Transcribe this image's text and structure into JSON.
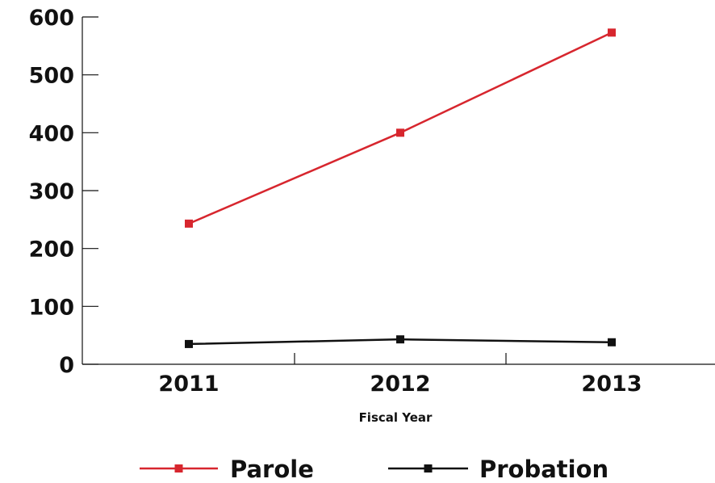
{
  "chart_data": {
    "type": "line",
    "xlabel": "Fiscal Year",
    "ylabel": "",
    "categories": [
      "2011",
      "2012",
      "2013"
    ],
    "ylim": [
      0,
      600
    ],
    "yticks": [
      0,
      100,
      200,
      300,
      400,
      500,
      600
    ],
    "grid": false,
    "legend_position": "bottom",
    "series": [
      {
        "name": "Parole",
        "color": "#d7262e",
        "marker": "square",
        "values": [
          243,
          400,
          573
        ]
      },
      {
        "name": "Probation",
        "color": "#111111",
        "marker": "square",
        "values": [
          35,
          43,
          38
        ]
      }
    ]
  }
}
